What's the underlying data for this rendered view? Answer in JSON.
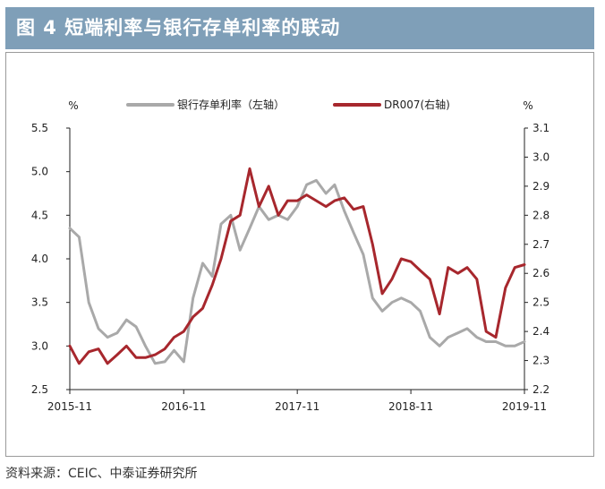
{
  "title": "图 4  短端利率与银行存单利率的联动",
  "source": "资料来源：CEIC、中泰证券研究所",
  "colors": {
    "title_bar": "#7f9fb8",
    "series_left": "#a9a9a9",
    "series_right": "#a7272d"
  },
  "chart_data": {
    "type": "line",
    "x_labels": [
      "2015-11",
      "2016-11",
      "2017-11",
      "2018-11",
      "2019-11"
    ],
    "x_range": [
      "2015-11-01",
      "2019-11-01"
    ],
    "y_left": {
      "unit": "%",
      "range": [
        2.5,
        5.5
      ],
      "ticks": [
        "2.5",
        "3.0",
        "3.5",
        "4.0",
        "4.5",
        "5.0",
        "5.5"
      ]
    },
    "y_right": {
      "unit": "%",
      "range": [
        2.2,
        3.1
      ],
      "ticks": [
        "2.2",
        "2.3",
        "2.4",
        "2.5",
        "2.6",
        "2.7",
        "2.8",
        "2.9",
        "3.0",
        "3.1"
      ]
    },
    "legend_placement": "top",
    "grid": false,
    "series": [
      {
        "name": "银行存单利率（左轴）",
        "axis": "left",
        "color": "#a9a9a9",
        "points": [
          [
            "2015-11-01",
            4.35
          ],
          [
            "2015-12-01",
            4.25
          ],
          [
            "2016-01-01",
            3.5
          ],
          [
            "2016-02-01",
            3.2
          ],
          [
            "2016-03-01",
            3.1
          ],
          [
            "2016-04-01",
            3.15
          ],
          [
            "2016-05-01",
            3.3
          ],
          [
            "2016-06-01",
            3.22
          ],
          [
            "2016-07-01",
            3.0
          ],
          [
            "2016-08-01",
            2.8
          ],
          [
            "2016-09-01",
            2.82
          ],
          [
            "2016-10-01",
            2.95
          ],
          [
            "2016-11-01",
            2.82
          ],
          [
            "2016-12-01",
            3.55
          ],
          [
            "2017-01-01",
            3.95
          ],
          [
            "2017-02-01",
            3.8
          ],
          [
            "2017-03-01",
            4.4
          ],
          [
            "2017-04-01",
            4.5
          ],
          [
            "2017-05-01",
            4.1
          ],
          [
            "2017-06-01",
            4.35
          ],
          [
            "2017-07-01",
            4.6
          ],
          [
            "2017-08-01",
            4.45
          ],
          [
            "2017-09-01",
            4.5
          ],
          [
            "2017-10-01",
            4.45
          ],
          [
            "2017-11-01",
            4.6
          ],
          [
            "2017-12-01",
            4.85
          ],
          [
            "2018-01-01",
            4.9
          ],
          [
            "2018-02-01",
            4.75
          ],
          [
            "2018-03-01",
            4.85
          ],
          [
            "2018-04-01",
            4.55
          ],
          [
            "2018-05-01",
            4.3
          ],
          [
            "2018-06-01",
            4.05
          ],
          [
            "2018-07-01",
            3.55
          ],
          [
            "2018-08-01",
            3.4
          ],
          [
            "2018-09-01",
            3.5
          ],
          [
            "2018-10-01",
            3.55
          ],
          [
            "2018-11-01",
            3.5
          ],
          [
            "2018-12-01",
            3.4
          ],
          [
            "2019-01-01",
            3.1
          ],
          [
            "2019-02-01",
            3.0
          ],
          [
            "2019-03-01",
            3.1
          ],
          [
            "2019-04-01",
            3.15
          ],
          [
            "2019-05-01",
            3.2
          ],
          [
            "2019-06-01",
            3.1
          ],
          [
            "2019-07-01",
            3.05
          ],
          [
            "2019-08-01",
            3.05
          ],
          [
            "2019-09-01",
            3.0
          ],
          [
            "2019-10-01",
            3.0
          ],
          [
            "2019-11-01",
            3.05
          ]
        ]
      },
      {
        "name": "DR007(右轴)",
        "axis": "right",
        "color": "#a7272d",
        "points": [
          [
            "2015-11-01",
            2.35
          ],
          [
            "2015-12-01",
            2.29
          ],
          [
            "2016-01-01",
            2.33
          ],
          [
            "2016-02-01",
            2.34
          ],
          [
            "2016-03-01",
            2.29
          ],
          [
            "2016-04-01",
            2.32
          ],
          [
            "2016-05-01",
            2.35
          ],
          [
            "2016-06-01",
            2.31
          ],
          [
            "2016-07-01",
            2.31
          ],
          [
            "2016-08-01",
            2.32
          ],
          [
            "2016-09-01",
            2.34
          ],
          [
            "2016-10-01",
            2.38
          ],
          [
            "2016-11-01",
            2.4
          ],
          [
            "2016-12-01",
            2.45
          ],
          [
            "2017-01-01",
            2.48
          ],
          [
            "2017-02-01",
            2.56
          ],
          [
            "2017-03-01",
            2.65
          ],
          [
            "2017-04-01",
            2.78
          ],
          [
            "2017-05-01",
            2.8
          ],
          [
            "2017-06-01",
            2.96
          ],
          [
            "2017-07-01",
            2.83
          ],
          [
            "2017-08-01",
            2.9
          ],
          [
            "2017-09-01",
            2.8
          ],
          [
            "2017-10-01",
            2.85
          ],
          [
            "2017-11-01",
            2.85
          ],
          [
            "2017-12-01",
            2.87
          ],
          [
            "2018-01-01",
            2.85
          ],
          [
            "2018-02-01",
            2.83
          ],
          [
            "2018-03-01",
            2.85
          ],
          [
            "2018-04-01",
            2.86
          ],
          [
            "2018-05-01",
            2.82
          ],
          [
            "2018-06-01",
            2.83
          ],
          [
            "2018-07-01",
            2.7
          ],
          [
            "2018-08-01",
            2.53
          ],
          [
            "2018-09-01",
            2.58
          ],
          [
            "2018-10-01",
            2.65
          ],
          [
            "2018-11-01",
            2.64
          ],
          [
            "2018-12-01",
            2.61
          ],
          [
            "2019-01-01",
            2.58
          ],
          [
            "2019-02-01",
            2.46
          ],
          [
            "2019-03-01",
            2.62
          ],
          [
            "2019-04-01",
            2.6
          ],
          [
            "2019-05-01",
            2.62
          ],
          [
            "2019-06-01",
            2.58
          ],
          [
            "2019-07-01",
            2.4
          ],
          [
            "2019-08-01",
            2.38
          ],
          [
            "2019-09-01",
            2.55
          ],
          [
            "2019-10-01",
            2.62
          ],
          [
            "2019-11-01",
            2.63
          ]
        ]
      }
    ]
  }
}
